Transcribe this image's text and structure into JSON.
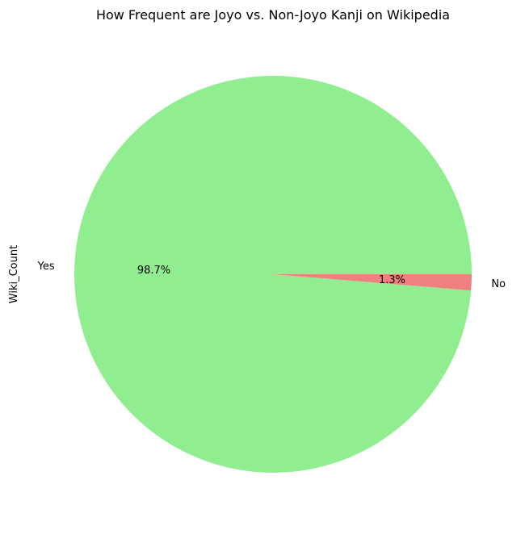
{
  "chart_data": {
    "type": "pie",
    "title": "How Frequent are Joyo vs. Non-Joyo Kanji on Wikipedia",
    "ylabel": "Wiki_Count",
    "categories": [
      "Yes",
      "No"
    ],
    "values": [
      98.7,
      1.3
    ],
    "percent_labels": [
      "98.7%",
      "1.3%"
    ],
    "colors": [
      "#90ee90",
      "#f08080"
    ],
    "start_angle_deg": 0,
    "direction": "counterclockwise",
    "legend": "none"
  }
}
